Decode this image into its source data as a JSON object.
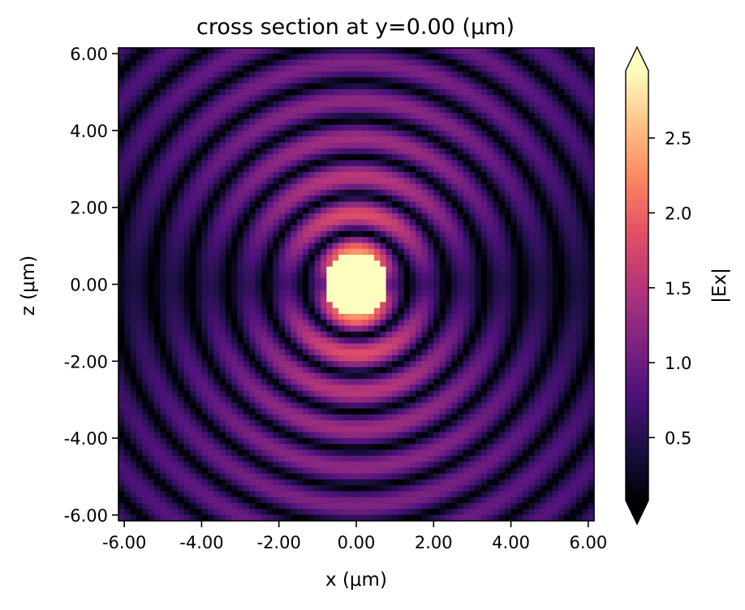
{
  "chart_data": {
    "type": "heatmap",
    "title": "cross section at y=0.00 (μm)",
    "xlabel": "x (μm)",
    "ylabel": "z (μm)",
    "xlim": [
      -6.15,
      6.15
    ],
    "ylim": [
      -6.15,
      6.15
    ],
    "x_ticks": [
      "-6.00",
      "-4.00",
      "-2.00",
      "0.00",
      "2.00",
      "4.00",
      "6.00"
    ],
    "x_tick_values": [
      -6,
      -4,
      -2,
      0,
      2,
      4,
      6
    ],
    "y_ticks": [
      "6.00",
      "4.00",
      "2.00",
      "0.00",
      "-2.00",
      "-4.00",
      "-6.00"
    ],
    "y_tick_values": [
      6,
      4,
      2,
      0,
      -2,
      -4,
      -6
    ],
    "grid": false,
    "colormap": "magma",
    "colorbar": {
      "label": "|Ex|",
      "range": [
        0.08,
        2.95
      ],
      "ticks": [
        "2.5",
        "2.0",
        "1.5",
        "1.0",
        "0.5"
      ],
      "tick_values": [
        2.5,
        2.0,
        1.5,
        1.0,
        0.5
      ],
      "extend": "both"
    },
    "field": {
      "description_kind": "radial dipole wave pattern",
      "center": [
        0,
        0
      ],
      "ring_spacing_um": 0.98,
      "grid_cells": 80
    },
    "colors": {
      "magma": [
        "#000004",
        "#1c1044",
        "#4f127b",
        "#812581",
        "#b5367a",
        "#e55064",
        "#fb8761",
        "#fec287",
        "#fcfdbf"
      ]
    }
  }
}
